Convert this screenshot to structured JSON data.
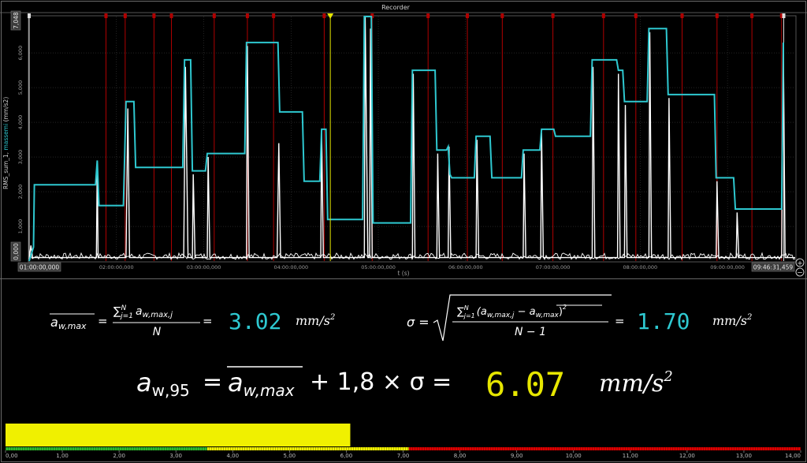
{
  "recorder": {
    "title": "Recorder",
    "y_axis_label_prefix": "RMS_sum_1, ",
    "y_axis_label_series": "massemi",
    "y_axis_label_unit": " (mm/s2)",
    "x_axis_label": "t (s)",
    "y_max_readout": "7,048",
    "y_min_readout": "0,000",
    "start_time": "01:00:00,000",
    "end_time": "09:46:31,459",
    "zoom_in_symbol": "+",
    "zoom_out_symbol": "−"
  },
  "colors": {
    "background": "#000000",
    "series": "#2ec8d0",
    "raw": "#ffffff",
    "cursor": "#e6e600",
    "marker": "#b00000",
    "grid": "#3a3a3a",
    "tick_text": "#9a9a9a",
    "avg_value": "#2ec8d0",
    "result_value": "#e6e600",
    "gauge_green": "#2db82d",
    "gauge_yellow": "#f0f000",
    "gauge_red": "#dd0000"
  },
  "chart_data": [
    {
      "type": "line",
      "x_unit": "hours",
      "xlim": [
        1.0,
        9.7754
      ],
      "ylim": [
        0,
        7.048
      ],
      "y_ticks": [
        "0,000",
        "1,000",
        "2,000",
        "3,000",
        "4,000",
        "5,000",
        "6,000",
        "7,048"
      ],
      "x_ticks": [
        "01:00:00,000",
        "02:00:00,000",
        "03:00:00,000",
        "04:00:00,000",
        "05:00:00,000",
        "06:00:00,000",
        "07:00:00,000",
        "08:00:00,000",
        "09:00:00,000",
        "09:46:31,459"
      ],
      "grid": true,
      "cursor_x": 4.45,
      "marker_x": [
        1.0,
        1.88,
        2.1,
        2.43,
        2.63,
        3.12,
        3.5,
        3.8,
        4.38,
        4.93,
        5.57,
        6.02,
        6.42,
        7.0,
        7.58,
        7.95,
        8.48,
        8.88,
        9.28,
        9.62
      ],
      "series": [
        {
          "name": "massemi",
          "points": [
            [
              1.0,
              0.0
            ],
            [
              1.05,
              0.4
            ],
            [
              1.06,
              2.2
            ],
            [
              1.76,
              2.2
            ],
            [
              1.78,
              2.9
            ],
            [
              1.8,
              1.6
            ],
            [
              2.08,
              1.6
            ],
            [
              2.11,
              4.6
            ],
            [
              2.2,
              4.6
            ],
            [
              2.22,
              2.7
            ],
            [
              2.76,
              2.7
            ],
            [
              2.78,
              5.8
            ],
            [
              2.85,
              5.8
            ],
            [
              2.87,
              2.6
            ],
            [
              3.02,
              2.6
            ],
            [
              3.04,
              3.1
            ],
            [
              3.47,
              3.1
            ],
            [
              3.49,
              6.3
            ],
            [
              3.85,
              6.3
            ],
            [
              3.87,
              4.3
            ],
            [
              4.13,
              4.3
            ],
            [
              4.15,
              2.3
            ],
            [
              4.33,
              2.3
            ],
            [
              4.35,
              3.8
            ],
            [
              4.4,
              3.8
            ],
            [
              4.42,
              1.2
            ],
            [
              4.82,
              1.2
            ],
            [
              4.84,
              7.048
            ],
            [
              4.92,
              7.048
            ],
            [
              4.94,
              1.1
            ],
            [
              5.37,
              1.1
            ],
            [
              5.39,
              5.5
            ],
            [
              5.65,
              5.5
            ],
            [
              5.67,
              3.2
            ],
            [
              5.78,
              3.2
            ],
            [
              5.8,
              3.3
            ],
            [
              5.82,
              2.5
            ],
            [
              5.84,
              2.4
            ],
            [
              6.1,
              2.4
            ],
            [
              6.12,
              3.6
            ],
            [
              6.28,
              3.6
            ],
            [
              6.3,
              2.4
            ],
            [
              6.64,
              2.4
            ],
            [
              6.66,
              3.2
            ],
            [
              6.85,
              3.2
            ],
            [
              6.87,
              3.8
            ],
            [
              7.01,
              3.8
            ],
            [
              7.03,
              3.6
            ],
            [
              7.43,
              3.6
            ],
            [
              7.45,
              5.8
            ],
            [
              7.73,
              5.8
            ],
            [
              7.75,
              5.5
            ],
            [
              7.8,
              5.5
            ],
            [
              7.82,
              4.6
            ],
            [
              8.08,
              4.6
            ],
            [
              8.1,
              6.7
            ],
            [
              8.3,
              6.7
            ],
            [
              8.32,
              4.8
            ],
            [
              8.85,
              4.8
            ],
            [
              8.87,
              2.4
            ],
            [
              9.07,
              2.4
            ],
            [
              9.09,
              1.5
            ],
            [
              9.62,
              1.5
            ],
            [
              9.64,
              6.3
            ]
          ]
        },
        {
          "name": "raw",
          "points": [
            [
              1.0,
              0.05
            ],
            [
              1.02,
              0.45
            ],
            [
              1.04,
              0.1
            ],
            [
              1.77,
              0.1
            ],
            [
              1.78,
              2.8
            ],
            [
              1.79,
              0.1
            ],
            [
              2.11,
              0.1
            ],
            [
              2.13,
              4.4
            ],
            [
              2.15,
              0.1
            ],
            [
              2.77,
              0.1
            ],
            [
              2.79,
              5.6
            ],
            [
              2.82,
              0.1
            ],
            [
              2.87,
              0.1
            ],
            [
              2.88,
              2.5
            ],
            [
              2.9,
              0.1
            ],
            [
              3.04,
              0.1
            ],
            [
              3.05,
              3.0
            ],
            [
              3.07,
              0.1
            ],
            [
              3.49,
              0.1
            ],
            [
              3.5,
              6.2
            ],
            [
              3.52,
              0.1
            ],
            [
              3.84,
              0.1
            ],
            [
              3.86,
              3.4
            ],
            [
              3.88,
              0.1
            ],
            [
              4.34,
              0.1
            ],
            [
              4.35,
              3.7
            ],
            [
              4.37,
              0.1
            ],
            [
              4.84,
              0.1
            ],
            [
              4.85,
              7.048
            ],
            [
              4.88,
              0.1
            ],
            [
              4.9,
              0.1
            ],
            [
              4.91,
              6.7
            ],
            [
              4.93,
              0.1
            ],
            [
              5.39,
              0.1
            ],
            [
              5.4,
              5.4
            ],
            [
              5.42,
              0.1
            ],
            [
              5.67,
              0.1
            ],
            [
              5.68,
              3.1
            ],
            [
              5.7,
              0.1
            ],
            [
              5.8,
              0.1
            ],
            [
              5.81,
              3.3
            ],
            [
              5.83,
              0.1
            ],
            [
              6.12,
              0.1
            ],
            [
              6.13,
              3.5
            ],
            [
              6.15,
              0.1
            ],
            [
              6.66,
              0.1
            ],
            [
              6.67,
              3.1
            ],
            [
              6.69,
              0.1
            ],
            [
              6.86,
              0.1
            ],
            [
              6.87,
              3.7
            ],
            [
              6.89,
              0.1
            ],
            [
              7.45,
              0.1
            ],
            [
              7.46,
              5.6
            ],
            [
              7.48,
              0.1
            ],
            [
              7.74,
              0.1
            ],
            [
              7.75,
              5.4
            ],
            [
              7.77,
              0.1
            ],
            [
              7.82,
              0.1
            ],
            [
              7.83,
              4.5
            ],
            [
              7.85,
              0.1
            ],
            [
              8.1,
              0.1
            ],
            [
              8.11,
              6.6
            ],
            [
              8.13,
              0.1
            ],
            [
              8.32,
              0.1
            ],
            [
              8.33,
              4.7
            ],
            [
              8.35,
              0.1
            ],
            [
              8.87,
              0.1
            ],
            [
              8.88,
              2.3
            ],
            [
              8.9,
              0.1
            ],
            [
              9.1,
              0.1
            ],
            [
              9.11,
              1.4
            ],
            [
              9.13,
              0.1
            ],
            [
              9.62,
              0.1
            ],
            [
              9.64,
              6.2
            ],
            [
              9.66,
              0.1
            ],
            [
              9.7754,
              0.1
            ]
          ]
        }
      ]
    },
    {
      "type": "bar",
      "title": "",
      "values": [
        6.07
      ],
      "xlim": [
        0,
        14
      ],
      "x_ticks": [
        "0,00",
        "1,00",
        "2,00",
        "3,00",
        "4,00",
        "5,00",
        "6,00",
        "7,00",
        "8,00",
        "9,00",
        "10,00",
        "11,00",
        "12,00",
        "13,00",
        "14,00"
      ],
      "zones": [
        {
          "name": "green",
          "from": 0,
          "to": 3.55
        },
        {
          "name": "yellow",
          "from": 3.55,
          "to": 7.1
        },
        {
          "name": "red",
          "from": 7.1,
          "to": 14
        }
      ]
    }
  ],
  "formulas": {
    "avg_lhs": "a",
    "avg_lhs_sub": "w,max",
    "avg_sum": "∑",
    "avg_sum_sup": "N",
    "avg_sum_sub": "j=1",
    "avg_term": "a",
    "avg_term_sub": "w,max,j",
    "avg_den": "N",
    "avg_value": "3.02",
    "avg_unit": "mm/s",
    "sigma_lhs": "σ =",
    "sigma_num_a": "(a",
    "sigma_num_a_sub": "w,max,j",
    "sigma_minus": " − ",
    "sigma_num_b": "a",
    "sigma_num_b_sub": "w,max",
    "sigma_den": "N − 1",
    "sigma_value": "1.70",
    "sigma_unit": "mm/s",
    "main_lhs": "a",
    "main_lhs_sub": "w,95",
    "main_eq": "=",
    "main_avg": "a",
    "main_avg_sub": "w,max",
    "main_rest": "+ 1,8 × σ =",
    "main_value": "6.07",
    "main_unit": "mm/s",
    "sq": "2"
  }
}
